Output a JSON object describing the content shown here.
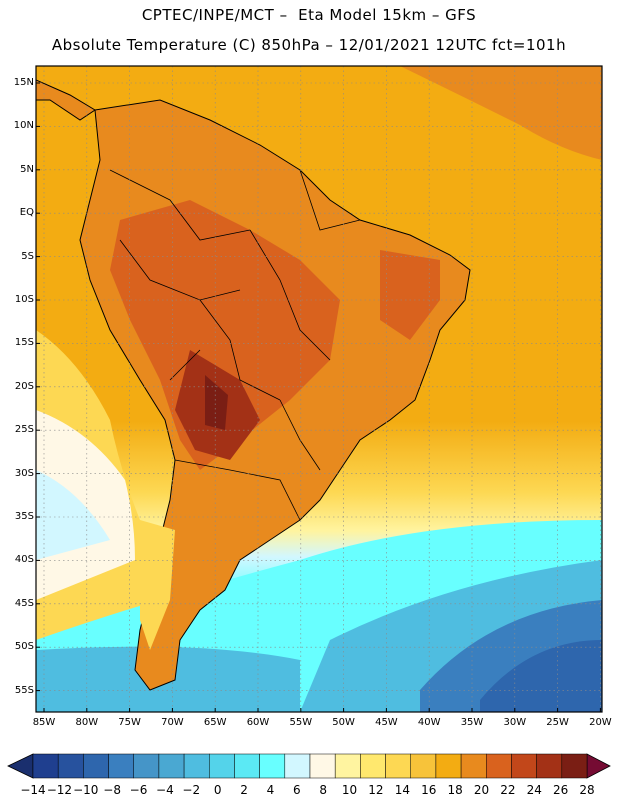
{
  "title": {
    "line1": "CPTEC/INPE/MCT –  Eta Model 15km – GFS",
    "line2": "Absolute Temperature (C) 850hPa – 12/01/2021 12UTC fct=101h"
  },
  "lat_labels": [
    "15N",
    "10N",
    "5N",
    "EQ",
    "5S",
    "10S",
    "15S",
    "20S",
    "25S",
    "30S",
    "35S",
    "40S",
    "45S",
    "50S",
    "55S"
  ],
  "lon_labels": [
    "85W",
    "80W",
    "75W",
    "70W",
    "65W",
    "60W",
    "55W",
    "50W",
    "45W",
    "40W",
    "35W",
    "30W",
    "25W",
    "20W"
  ],
  "colorbar": {
    "labels": [
      "-14",
      "-12",
      "-10",
      "-8",
      "-6",
      "-4",
      "-2",
      "0",
      "2",
      "4",
      "6",
      "8",
      "10",
      "12",
      "14",
      "16",
      "18",
      "20",
      "22",
      "24",
      "26",
      "28"
    ],
    "colors": [
      "#1f3f8f",
      "#27529e",
      "#2e66ad",
      "#3a7fbf",
      "#4595c8",
      "#4aa8d2",
      "#4fbde0",
      "#54d3ea",
      "#5be9f4",
      "#68ffff",
      "#d2f7ff",
      "#fff8e6",
      "#fff4a0",
      "#ffe86e",
      "#fdd853",
      "#f7c33a",
      "#f3ac12",
      "#e88a1e",
      "#d9621e",
      "#c2471a",
      "#a33116",
      "#7a1e14"
    ],
    "low_color": "#1a2f6e",
    "high_color": "#750b33"
  }
}
